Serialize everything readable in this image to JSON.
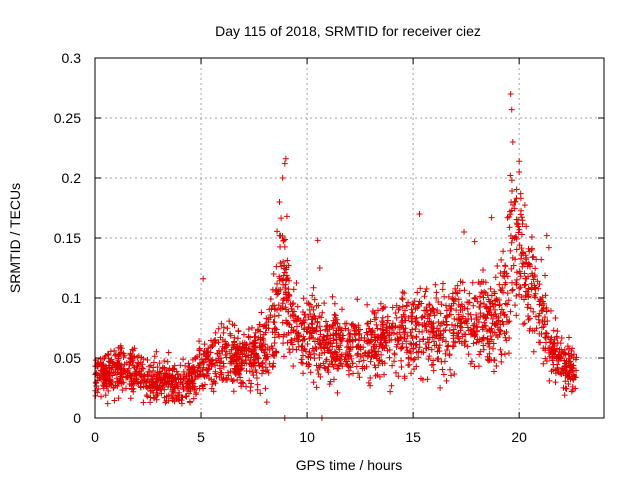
{
  "chart_data": {
    "type": "scatter",
    "title": "Day 115 of 2018, SRMTID for receiver ciez",
    "xlabel": "GPS time / hours",
    "ylabel": "SRMTID / TECUs",
    "xlim": [
      0,
      24
    ],
    "ylim": [
      0,
      0.3
    ],
    "x_ticks": [
      0,
      5,
      10,
      15,
      20
    ],
    "x_tick_labels": [
      "0",
      "5",
      "10",
      "15",
      "20"
    ],
    "y_ticks": [
      0,
      0.05,
      0.1,
      0.15,
      0.2,
      0.25,
      0.3
    ],
    "y_tick_labels": [
      "0",
      "0.05",
      "0.1",
      "0.15",
      "0.2",
      "0.25",
      "0.3"
    ],
    "grid": true,
    "marker": "+",
    "color": "#e00000",
    "series": [
      {
        "name": "SRMTID",
        "profile": {
          "x": [
            0.0,
            0.5,
            1.0,
            1.5,
            2.0,
            2.5,
            3.0,
            3.5,
            4.0,
            4.5,
            5.0,
            5.5,
            6.0,
            6.5,
            7.0,
            7.5,
            8.0,
            8.5,
            8.8,
            9.0,
            9.5,
            10.0,
            10.5,
            11.0,
            11.5,
            12.0,
            12.5,
            13.0,
            13.5,
            14.0,
            14.5,
            15.0,
            15.5,
            16.0,
            16.5,
            17.0,
            17.5,
            18.0,
            18.5,
            19.0,
            19.4,
            19.7,
            20.0,
            20.5,
            21.0,
            21.5,
            22.0,
            22.5,
            22.7
          ],
          "center": [
            0.032,
            0.035,
            0.038,
            0.042,
            0.036,
            0.033,
            0.031,
            0.03,
            0.029,
            0.032,
            0.045,
            0.048,
            0.052,
            0.05,
            0.05,
            0.055,
            0.06,
            0.08,
            0.14,
            0.1,
            0.072,
            0.072,
            0.065,
            0.062,
            0.06,
            0.06,
            0.058,
            0.06,
            0.065,
            0.068,
            0.07,
            0.075,
            0.075,
            0.075,
            0.072,
            0.08,
            0.08,
            0.08,
            0.075,
            0.08,
            0.11,
            0.15,
            0.14,
            0.11,
            0.09,
            0.06,
            0.045,
            0.04,
            0.038
          ],
          "spread": [
            0.012,
            0.012,
            0.012,
            0.012,
            0.012,
            0.012,
            0.012,
            0.012,
            0.012,
            0.012,
            0.015,
            0.016,
            0.016,
            0.017,
            0.018,
            0.018,
            0.022,
            0.03,
            0.05,
            0.03,
            0.02,
            0.02,
            0.02,
            0.02,
            0.02,
            0.02,
            0.02,
            0.02,
            0.02,
            0.02,
            0.022,
            0.024,
            0.024,
            0.024,
            0.025,
            0.026,
            0.026,
            0.026,
            0.026,
            0.028,
            0.035,
            0.045,
            0.04,
            0.03,
            0.025,
            0.02,
            0.015,
            0.012,
            0.012
          ]
        },
        "extremes": [
          {
            "x": 19.6,
            "y": 0.27
          },
          {
            "x": 19.65,
            "y": 0.257
          },
          {
            "x": 19.7,
            "y": 0.23
          },
          {
            "x": 20.0,
            "y": 0.214
          },
          {
            "x": 20.0,
            "y": 0.205
          },
          {
            "x": 9.0,
            "y": 0.216
          },
          {
            "x": 8.95,
            "y": 0.212
          },
          {
            "x": 8.85,
            "y": 0.2
          },
          {
            "x": 8.7,
            "y": 0.18
          },
          {
            "x": 9.05,
            "y": 0.168
          },
          {
            "x": 15.3,
            "y": 0.17
          },
          {
            "x": 18.7,
            "y": 0.167
          },
          {
            "x": 10.5,
            "y": 0.148
          },
          {
            "x": 5.1,
            "y": 0.116
          },
          {
            "x": 21.3,
            "y": 0.152
          },
          {
            "x": 21.4,
            "y": 0.142
          },
          {
            "x": 10.6,
            "y": 0.125
          },
          {
            "x": 11.2,
            "y": 0.101
          },
          {
            "x": 17.4,
            "y": 0.155
          },
          {
            "x": 17.9,
            "y": 0.147
          },
          {
            "x": 4.1,
            "y": 0.012
          },
          {
            "x": 2.6,
            "y": 0.013
          },
          {
            "x": 0.6,
            "y": 0.012
          }
        ],
        "zero_values": [
          {
            "x": 8.95,
            "y": 0
          },
          {
            "x": 10.7,
            "y": 0
          }
        ]
      }
    ]
  }
}
